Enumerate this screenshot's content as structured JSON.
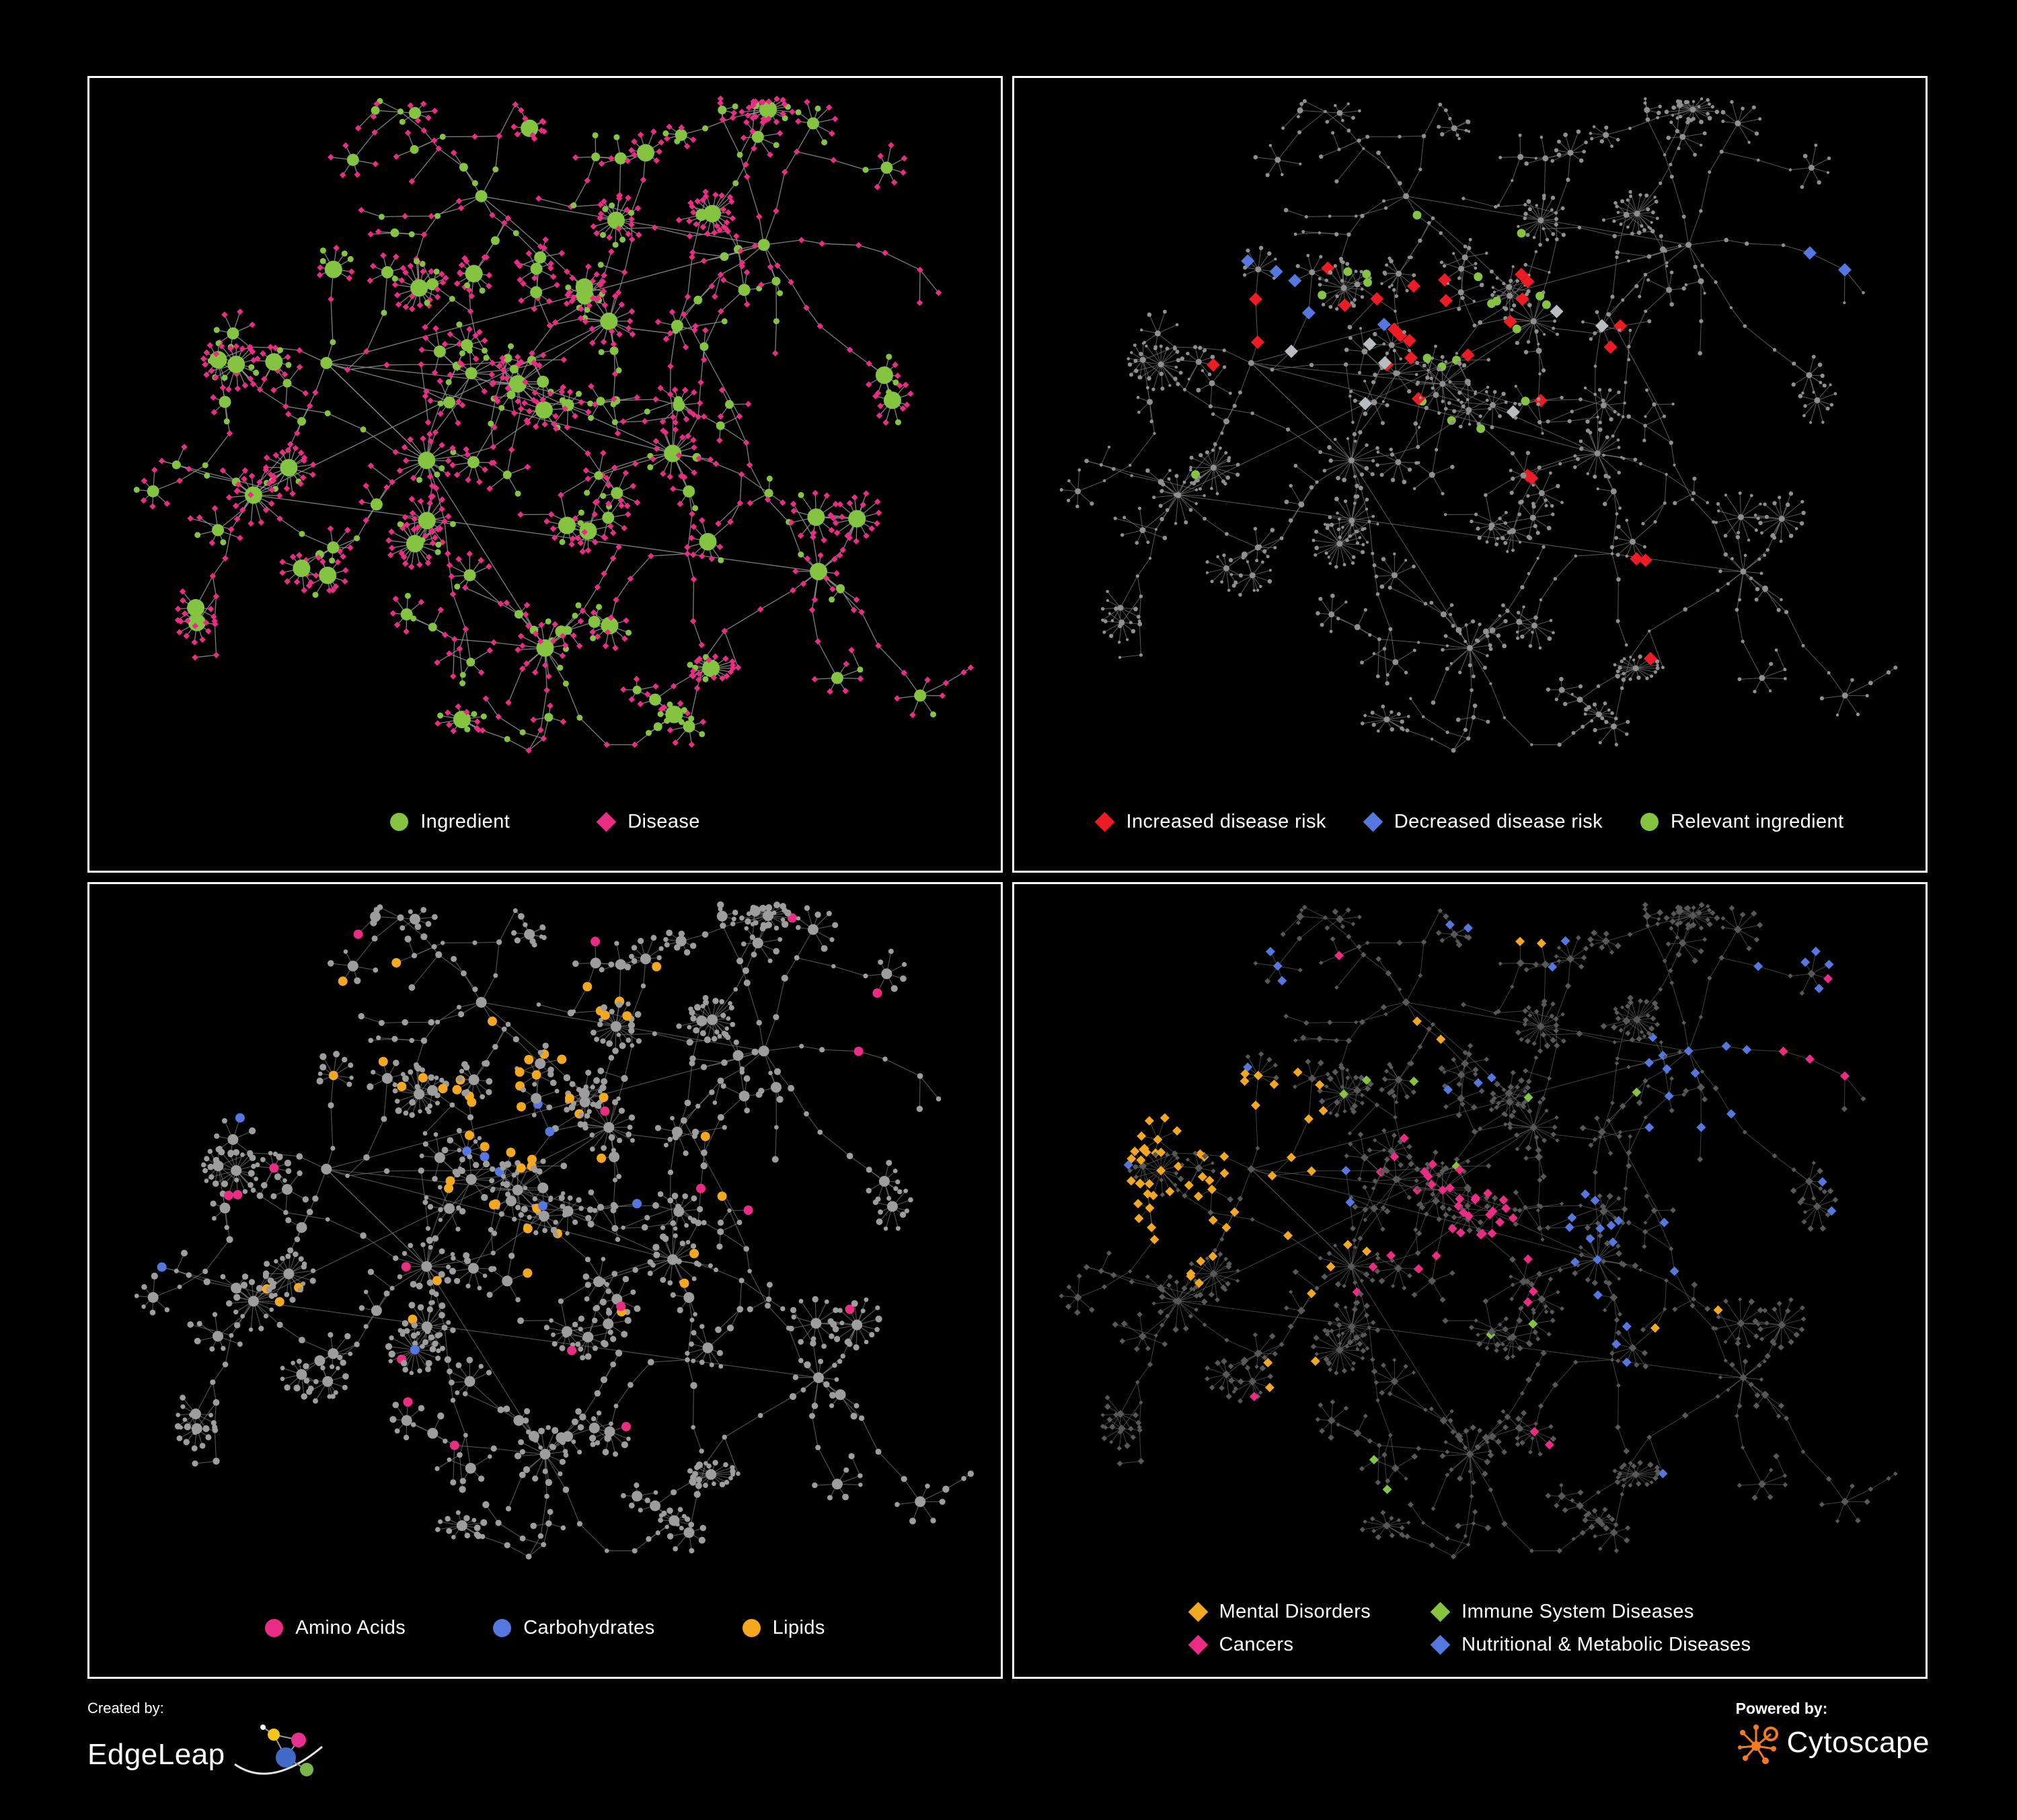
{
  "page": {
    "background": "#000000",
    "panel_border": "#ffffff"
  },
  "network": {
    "seed": 20,
    "shared_layout": true
  },
  "panels": [
    {
      "id": "ingredient-disease",
      "legend": [
        {
          "label": "Ingredient",
          "shape": "circle",
          "color": "#85c441"
        },
        {
          "label": "Disease",
          "shape": "diamond",
          "color": "#ea2c85"
        }
      ],
      "paint": {
        "mode": "two-type",
        "edge_color": "#8c8c8c",
        "edge_opacity": 0.9,
        "edge_width": 1.3,
        "type_a": {
          "name": "ingredient",
          "shape": "circle",
          "color": "#85c441",
          "ratio": 0.15
        },
        "type_b": {
          "name": "disease",
          "shape": "diamond",
          "color": "#ea2c85"
        }
      }
    },
    {
      "id": "disease-risk",
      "legend": [
        {
          "label": "Increased disease risk",
          "shape": "diamond",
          "color": "#ed1c24"
        },
        {
          "label": "Decreased disease risk",
          "shape": "diamond",
          "color": "#5577e0"
        },
        {
          "label": "Relevant ingredient",
          "shape": "circle",
          "color": "#85c441"
        }
      ],
      "paint": {
        "mode": "base-highlight",
        "edge_color": "#6f6f6f",
        "edge_opacity": 0.8,
        "edge_width": 1,
        "base": {
          "shape": "circle",
          "color": "#8f8f8f",
          "r": 2.6,
          "hub_r": 4.5
        },
        "highlights": [
          {
            "name": "increased-risk",
            "shape": "diamond",
            "color": "#ed1c24",
            "size": 10,
            "regions": [
              [
                0.33,
                0.3,
                0.1,
                4
              ],
              [
                0.45,
                0.32,
                0.12,
                8
              ],
              [
                0.52,
                0.4,
                0.1,
                6
              ],
              [
                0.63,
                0.33,
                0.08,
                3
              ],
              [
                0.25,
                0.35,
                0.06,
                2
              ],
              [
                0.7,
                0.74,
                0.06,
                2
              ],
              [
                0.74,
                0.8,
                0.05,
                1
              ],
              [
                0.56,
                0.5,
                0.07,
                2
              ]
            ]
          },
          {
            "name": "decreased-risk",
            "shape": "diamond",
            "color": "#5577e0",
            "size": 10,
            "regions": [
              [
                0.29,
                0.34,
                0.07,
                4
              ],
              [
                0.88,
                0.26,
                0.05,
                2
              ],
              [
                0.42,
                0.34,
                0.04,
                1
              ]
            ]
          },
          {
            "name": "neutral-risk",
            "shape": "diamond",
            "color": "#b9bcc0",
            "size": 10,
            "regions": [
              [
                0.39,
                0.36,
                0.1,
                3
              ],
              [
                0.59,
                0.4,
                0.08,
                3
              ],
              [
                0.3,
                0.42,
                0.05,
                1
              ]
            ]
          },
          {
            "name": "relevant-ingredient",
            "shape": "circle",
            "color": "#85c441",
            "size": 6.5,
            "regions": [
              [
                0.45,
                0.33,
                0.16,
                8
              ],
              [
                0.3,
                0.29,
                0.09,
                4
              ],
              [
                0.55,
                0.44,
                0.11,
                4
              ],
              [
                0.24,
                0.55,
                0.05,
                1
              ],
              [
                0.61,
                0.27,
                0.06,
                2
              ],
              [
                0.5,
                0.2,
                0.06,
                1
              ]
            ]
          }
        ]
      }
    },
    {
      "id": "nutrient-classes",
      "legend": [
        {
          "label": "Amino Acids",
          "shape": "circle",
          "color": "#ea2c85"
        },
        {
          "label": "Carbohydrates",
          "shape": "circle",
          "color": "#5577e0"
        },
        {
          "label": "Lipids",
          "shape": "circle",
          "color": "#f3a81f"
        }
      ],
      "paint": {
        "mode": "base-highlight",
        "edge_color": "#787878",
        "edge_opacity": 0.7,
        "edge_width": 1.1,
        "base": {
          "shape": "circle",
          "color": "#9d9d9d",
          "r": 4,
          "hub_r": 8
        },
        "highlights": [
          {
            "name": "lipids",
            "shape": "circle",
            "color": "#f3a81f",
            "size": 7,
            "regions": [
              [
                0.5,
                0.27,
                0.12,
                22
              ],
              [
                0.45,
                0.37,
                0.09,
                10
              ],
              [
                0.31,
                0.22,
                0.09,
                5
              ],
              [
                0.57,
                0.52,
                0.1,
                7
              ],
              [
                0.68,
                0.44,
                0.06,
                2
              ],
              [
                0.25,
                0.57,
                0.06,
                3
              ],
              [
                0.4,
                0.6,
                0.05,
                2
              ],
              [
                0.6,
                0.14,
                0.05,
                2
              ],
              [
                0.22,
                0.12,
                0.04,
                1
              ]
            ]
          },
          {
            "name": "amino-acids",
            "shape": "circle",
            "color": "#ea2c85",
            "size": 7,
            "regions": [
              [
                0.5,
                0.5,
                0.5,
                12
              ],
              [
                0.13,
                0.42,
                0.08,
                2
              ],
              [
                0.83,
                0.23,
                0.07,
                2
              ],
              [
                0.4,
                0.78,
                0.06,
                2
              ],
              [
                0.55,
                0.05,
                0.04,
                1
              ]
            ]
          },
          {
            "name": "carbohydrates",
            "shape": "circle",
            "color": "#5577e0",
            "size": 7,
            "regions": [
              [
                0.46,
                0.4,
                0.07,
                4
              ],
              [
                0.52,
                0.34,
                0.05,
                2
              ],
              [
                0.12,
                0.22,
                0.04,
                1
              ],
              [
                0.36,
                0.72,
                0.04,
                1
              ],
              [
                0.6,
                0.43,
                0.04,
                1
              ],
              [
                0.05,
                0.47,
                0.03,
                1
              ]
            ]
          }
        ]
      }
    },
    {
      "id": "disease-classes",
      "legend_columns": 2,
      "legend": [
        {
          "label": "Mental Disorders",
          "shape": "diamond",
          "color": "#f3a81f"
        },
        {
          "label": "Immune System Diseases",
          "shape": "diamond",
          "color": "#85c441"
        },
        {
          "label": "Cancers",
          "shape": "diamond",
          "color": "#ea2c85"
        },
        {
          "label": "Nutritional & Metabolic Diseases",
          "shape": "diamond",
          "color": "#5577e0"
        }
      ],
      "paint": {
        "mode": "base-highlight",
        "edge_color": "#646464",
        "edge_opacity": 0.65,
        "edge_width": 1,
        "base": {
          "shape": "diamond",
          "color": "#585858",
          "r": 3.8,
          "hub_r": 6
        },
        "highlights": [
          {
            "name": "mental-disorders",
            "shape": "diamond",
            "color": "#f3a81f",
            "size": 7,
            "regions": [
              [
                0.21,
                0.42,
                0.12,
                45
              ],
              [
                0.28,
                0.33,
                0.07,
                8
              ],
              [
                0.14,
                0.26,
                0.07,
                4
              ],
              [
                0.33,
                0.52,
                0.06,
                4
              ],
              [
                0.58,
                0.12,
                0.04,
                2
              ],
              [
                0.29,
                0.68,
                0.05,
                3
              ],
              [
                0.74,
                0.64,
                0.04,
                2
              ],
              [
                0.45,
                0.22,
                0.04,
                2
              ]
            ]
          },
          {
            "name": "cancers",
            "shape": "diamond",
            "color": "#ea2c85",
            "size": 7,
            "regions": [
              [
                0.47,
                0.46,
                0.09,
                25
              ],
              [
                0.54,
                0.53,
                0.07,
                9
              ],
              [
                0.41,
                0.58,
                0.05,
                3
              ],
              [
                0.91,
                0.24,
                0.05,
                4
              ],
              [
                0.6,
                0.79,
                0.04,
                2
              ],
              [
                0.25,
                0.84,
                0.03,
                1
              ],
              [
                0.37,
                0.1,
                0.03,
                1
              ]
            ]
          },
          {
            "name": "nutritional-metabolic",
            "shape": "diamond",
            "color": "#5577e0",
            "size": 7,
            "regions": [
              [
                0.67,
                0.51,
                0.07,
                14
              ],
              [
                0.77,
                0.31,
                0.1,
                12
              ],
              [
                0.87,
                0.17,
                0.07,
                5
              ],
              [
                0.54,
                0.09,
                0.07,
                4
              ],
              [
                0.14,
                0.14,
                0.07,
                4
              ],
              [
                0.64,
                0.68,
                0.05,
                3
              ],
              [
                0.5,
                0.24,
                0.05,
                3
              ],
              [
                0.34,
                0.44,
                0.04,
                2
              ],
              [
                0.9,
                0.44,
                0.04,
                2
              ],
              [
                0.73,
                0.88,
                0.03,
                1
              ],
              [
                0.05,
                0.32,
                0.03,
                1
              ]
            ]
          },
          {
            "name": "immune-system",
            "shape": "diamond",
            "color": "#85c441",
            "size": 7,
            "regions": [
              [
                0.44,
                0.34,
                0.15,
                4
              ],
              [
                0.55,
                0.6,
                0.08,
                2
              ],
              [
                0.41,
                0.86,
                0.04,
                2
              ],
              [
                0.64,
                0.3,
                0.05,
                1
              ],
              [
                0.35,
                0.28,
                0.04,
                1
              ]
            ]
          }
        ]
      }
    }
  ],
  "footer": {
    "created_by": "Created by:",
    "brand": "EdgeLeap",
    "powered_by": "Powered by:",
    "engine": "Cytoscape",
    "logo_colors": {
      "edgeleap_yellow": "#f5c51c",
      "edgeleap_pink": "#e6318f",
      "edgeleap_blue": "#4169c8",
      "edgeleap_green": "#7ab648",
      "cytoscape_orange": "#f47b20"
    }
  }
}
